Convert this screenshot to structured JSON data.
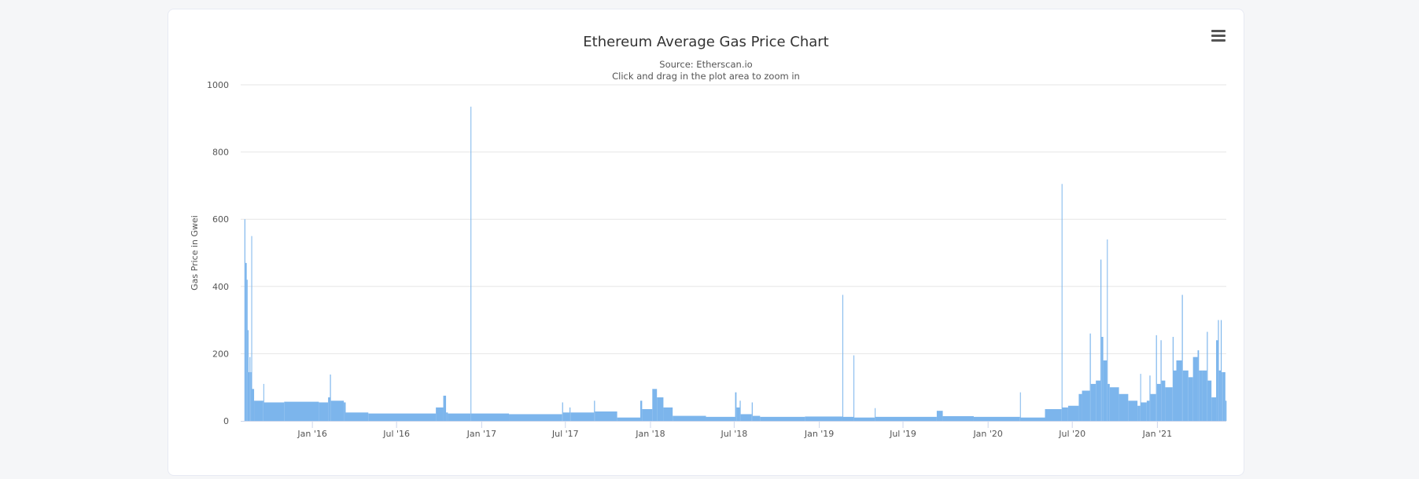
{
  "chart_data": {
    "type": "area",
    "title": "Ethereum Average Gas Price Chart",
    "subtitle": [
      "Source: Etherscan.io",
      "Click and drag in the plot area to zoom in"
    ],
    "xlabel": "",
    "ylabel": "Gas Price in Gwei",
    "ylim": [
      0,
      1000
    ],
    "yticks": [
      0,
      200,
      400,
      600,
      800,
      1000
    ],
    "xlim": [
      "2015-07-30",
      "2021-05-30"
    ],
    "xticks": [
      {
        "date": "2016-01-01",
        "label": "Jan '16"
      },
      {
        "date": "2016-07-01",
        "label": "Jul '16"
      },
      {
        "date": "2017-01-01",
        "label": "Jan '17"
      },
      {
        "date": "2017-07-01",
        "label": "Jul '17"
      },
      {
        "date": "2018-01-01",
        "label": "Jan '18"
      },
      {
        "date": "2018-07-01",
        "label": "Jul '18"
      },
      {
        "date": "2019-01-01",
        "label": "Jan '19"
      },
      {
        "date": "2019-07-01",
        "label": "Jul '19"
      },
      {
        "date": "2020-01-01",
        "label": "Jan '20"
      },
      {
        "date": "2020-07-01",
        "label": "Jul '20"
      },
      {
        "date": "2021-01-01",
        "label": "Jan '21"
      }
    ],
    "grid": true,
    "color": "#7cb5ec",
    "points": [
      [
        "2015-08-07",
        600
      ],
      [
        "2015-08-09",
        470
      ],
      [
        "2015-08-12",
        420
      ],
      [
        "2015-08-14",
        270
      ],
      [
        "2015-08-16",
        145
      ],
      [
        "2015-08-18",
        190
      ],
      [
        "2015-08-20",
        145
      ],
      [
        "2015-08-22",
        550
      ],
      [
        "2015-08-23",
        95
      ],
      [
        "2015-08-28",
        60
      ],
      [
        "2015-09-17",
        110
      ],
      [
        "2015-09-18",
        55
      ],
      [
        "2015-11-01",
        57
      ],
      [
        "2016-01-15",
        55
      ],
      [
        "2016-02-04",
        70
      ],
      [
        "2016-02-08",
        138
      ],
      [
        "2016-02-10",
        60
      ],
      [
        "2016-03-09",
        55
      ],
      [
        "2016-03-13",
        25
      ],
      [
        "2016-05-01",
        22
      ],
      [
        "2016-09-24",
        40
      ],
      [
        "2016-10-10",
        75
      ],
      [
        "2016-10-16",
        25
      ],
      [
        "2016-10-20",
        22
      ],
      [
        "2016-12-08",
        935
      ],
      [
        "2016-12-09",
        22
      ],
      [
        "2017-03-01",
        20
      ],
      [
        "2017-06-24",
        55
      ],
      [
        "2017-06-26",
        25
      ],
      [
        "2017-07-10",
        40
      ],
      [
        "2017-07-12",
        25
      ],
      [
        "2017-09-01",
        60
      ],
      [
        "2017-09-03",
        28
      ],
      [
        "2017-10-21",
        10
      ],
      [
        "2017-12-10",
        60
      ],
      [
        "2017-12-14",
        35
      ],
      [
        "2018-01-05",
        95
      ],
      [
        "2018-01-15",
        70
      ],
      [
        "2018-01-29",
        40
      ],
      [
        "2018-02-18",
        15
      ],
      [
        "2018-05-01",
        12
      ],
      [
        "2018-07-03",
        85
      ],
      [
        "2018-07-06",
        40
      ],
      [
        "2018-07-13",
        60
      ],
      [
        "2018-07-15",
        20
      ],
      [
        "2018-08-08",
        55
      ],
      [
        "2018-08-10",
        15
      ],
      [
        "2018-08-26",
        12
      ],
      [
        "2018-12-01",
        13
      ],
      [
        "2019-02-20",
        375
      ],
      [
        "2019-02-21",
        12
      ],
      [
        "2019-03-16",
        195
      ],
      [
        "2019-03-17",
        10
      ],
      [
        "2019-05-01",
        38
      ],
      [
        "2019-05-02",
        12
      ],
      [
        "2019-09-12",
        30
      ],
      [
        "2019-09-25",
        14
      ],
      [
        "2019-12-01",
        12
      ],
      [
        "2020-03-10",
        85
      ],
      [
        "2020-03-11",
        10
      ],
      [
        "2020-05-03",
        35
      ],
      [
        "2020-06-08",
        705
      ],
      [
        "2020-06-09",
        40
      ],
      [
        "2020-06-22",
        45
      ],
      [
        "2020-07-15",
        80
      ],
      [
        "2020-07-22",
        90
      ],
      [
        "2020-08-08",
        260
      ],
      [
        "2020-08-10",
        110
      ],
      [
        "2020-08-21",
        120
      ],
      [
        "2020-08-31",
        480
      ],
      [
        "2020-09-02",
        250
      ],
      [
        "2020-09-06",
        180
      ],
      [
        "2020-09-14",
        540
      ],
      [
        "2020-09-15",
        110
      ],
      [
        "2020-09-20",
        100
      ],
      [
        "2020-10-10",
        80
      ],
      [
        "2020-10-30",
        60
      ],
      [
        "2020-11-19",
        45
      ],
      [
        "2020-11-25",
        140
      ],
      [
        "2020-11-26",
        55
      ],
      [
        "2020-12-09",
        60
      ],
      [
        "2020-12-15",
        135
      ],
      [
        "2020-12-17",
        80
      ],
      [
        "2020-12-29",
        255
      ],
      [
        "2020-12-31",
        110
      ],
      [
        "2021-01-08",
        240
      ],
      [
        "2021-01-10",
        120
      ],
      [
        "2021-01-18",
        100
      ],
      [
        "2021-02-03",
        250
      ],
      [
        "2021-02-05",
        150
      ],
      [
        "2021-02-11",
        180
      ],
      [
        "2021-02-23",
        375
      ],
      [
        "2021-02-25",
        150
      ],
      [
        "2021-03-09",
        130
      ],
      [
        "2021-03-19",
        190
      ],
      [
        "2021-03-29",
        210
      ],
      [
        "2021-04-01",
        150
      ],
      [
        "2021-04-08",
        150
      ],
      [
        "2021-04-18",
        265
      ],
      [
        "2021-04-20",
        120
      ],
      [
        "2021-04-28",
        70
      ],
      [
        "2021-05-08",
        240
      ],
      [
        "2021-05-12",
        300
      ],
      [
        "2021-05-14",
        150
      ],
      [
        "2021-05-18",
        300
      ],
      [
        "2021-05-20",
        145
      ],
      [
        "2021-05-22",
        145
      ],
      [
        "2021-05-28",
        60
      ]
    ]
  }
}
